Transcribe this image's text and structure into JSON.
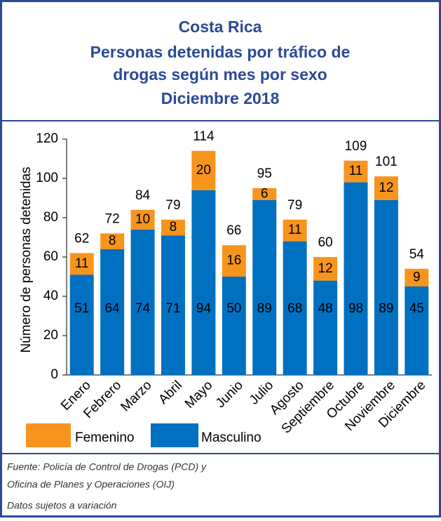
{
  "chart_data": {
    "type": "stacked_bar",
    "title": [
      "Costa Rica",
      "Personas detenidas  por tráfico de",
      "drogas según mes por sexo",
      "Diciembre  2018"
    ],
    "y_label": "Número de personas detenidas",
    "categories": [
      "Enero",
      "Febrero",
      "Marzo",
      "Abril",
      "Mayo",
      "Junio",
      "Julio",
      "Agosto",
      "Septiembre",
      "Octubre",
      "Noviembre",
      "Diciembre"
    ],
    "series": [
      {
        "name": "Masculino",
        "color": "#0070c0",
        "values": [
          51,
          64,
          74,
          71,
          94,
          50,
          89,
          68,
          48,
          98,
          89,
          45
        ]
      },
      {
        "name": "Femenino",
        "color": "#f7941d",
        "values": [
          11,
          8,
          10,
          8,
          20,
          16,
          6,
          11,
          12,
          11,
          12,
          9
        ]
      }
    ],
    "totals": [
      62,
      72,
      84,
      79,
      114,
      66,
      95,
      79,
      60,
      109,
      101,
      54
    ],
    "ylim": [
      0,
      120
    ],
    "yticks": [
      0,
      20,
      40,
      60,
      80,
      100,
      120
    ],
    "notes": [
      "Fuente: Policía de Control de Drogas (PCD) y",
      "Oficina de Planes y Operaciones (OIJ)",
      "Datos sujetos a variación"
    ]
  }
}
